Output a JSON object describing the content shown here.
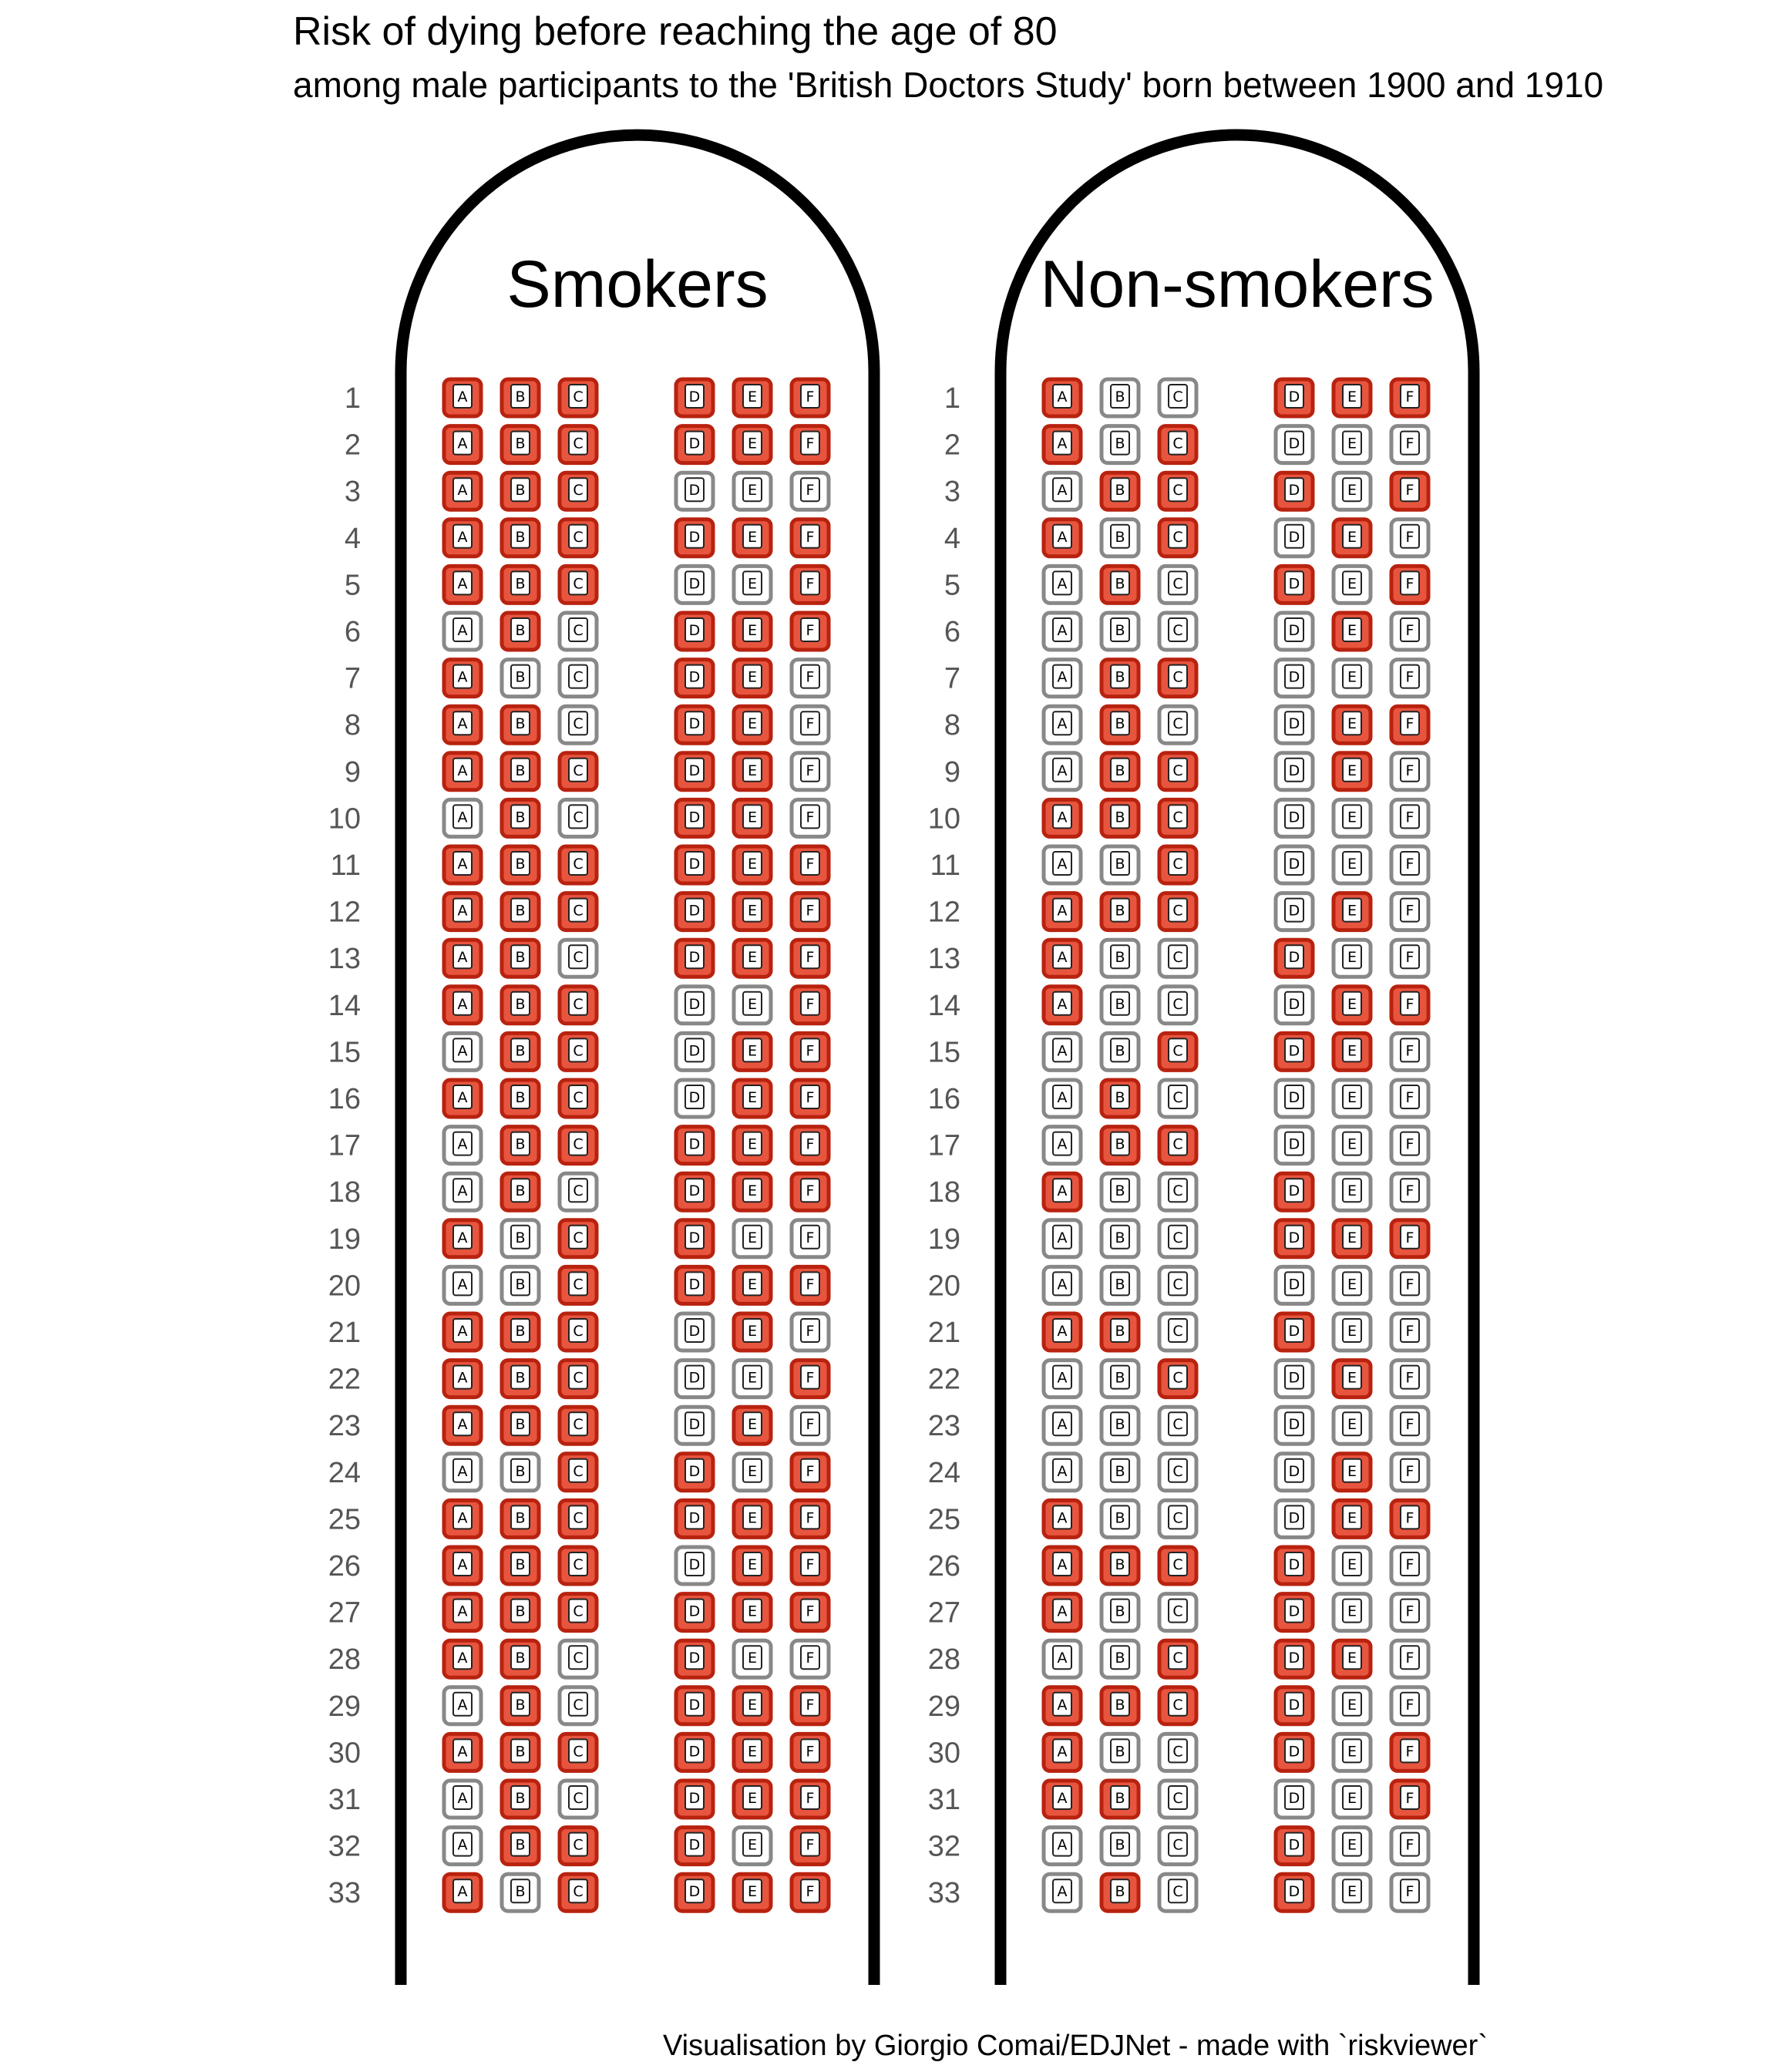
{
  "chart_data": {
    "type": "seat-map (icon array)",
    "title": "Risk of dying before reaching the age of 80",
    "subtitle": "among male participants to the 'British Doctors Study' born between 1900 and 1910",
    "caption": "Visualisation by Giorgio Comai/EDJNet - made with `riskviewer`",
    "seat_letters": [
      "A",
      "B",
      "C",
      "D",
      "E",
      "F"
    ],
    "rows": 33,
    "colors": {
      "affected_fill": "#E8553F",
      "affected_border": "#B8220F",
      "unaffected_fill": "#FFFFFF",
      "unaffected_border": "#888888",
      "fuselage": "#000000"
    },
    "encoding": "1 = red seat, 0 = white seat; each string lists seats A-F of one row",
    "panels": [
      {
        "name": "Smokers",
        "rows": [
          "111111",
          "111111",
          "111000",
          "111111",
          "111001",
          "010111",
          "100110",
          "110110",
          "111110",
          "010110",
          "111111",
          "111111",
          "110111",
          "111001",
          "011011",
          "111011",
          "011111",
          "010111",
          "101100",
          "001111",
          "111010",
          "111001",
          "111010",
          "001101",
          "111111",
          "111011",
          "111111",
          "110100",
          "010111",
          "111111",
          "010111",
          "011101",
          "101111"
        ]
      },
      {
        "name": "Non-smokers",
        "rows": [
          "100111",
          "101000",
          "011101",
          "101010",
          "010101",
          "000010",
          "011000",
          "010011",
          "011010",
          "111000",
          "001000",
          "111010",
          "100100",
          "100011",
          "001110",
          "010000",
          "011000",
          "100100",
          "000111",
          "000000",
          "110100",
          "001010",
          "000000",
          "000010",
          "100011",
          "111100",
          "100100",
          "001110",
          "111100",
          "100101",
          "110001",
          "000100",
          "010100"
        ]
      }
    ]
  }
}
